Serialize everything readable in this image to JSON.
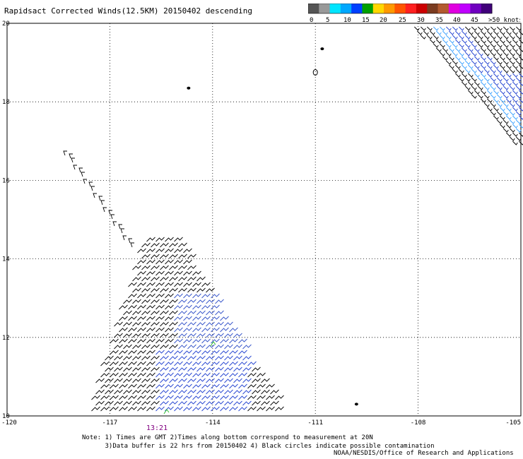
{
  "title": "Rapidsact Corrected Winds(12.5KM) 20150402 descending",
  "legend": {
    "labels": [
      "0",
      "5",
      "10",
      "15",
      "20",
      "25",
      "30",
      "35",
      "40",
      "45",
      ">50 knots"
    ],
    "colors": [
      "#555555",
      "#999999",
      "#00e5ff",
      "#00a8ff",
      "#0040ff",
      "#00a000",
      "#ffd700",
      "#ff9900",
      "#ff5500",
      "#ff2020",
      "#cc0000",
      "#7a3b20",
      "#b35a30",
      "#e000e0",
      "#c000ff",
      "#7000c0",
      "#40007a"
    ]
  },
  "axes": {
    "x_ticks": [
      "-120",
      "-117",
      "-114",
      "-111",
      "-108",
      "-105"
    ],
    "x_values": [
      -120,
      -117,
      -114,
      -111,
      -108,
      -105
    ],
    "y_ticks": [
      "20",
      "18",
      "16",
      "14",
      "12",
      "10"
    ],
    "y_values": [
      20,
      18,
      16,
      14,
      12,
      10
    ],
    "lon_range": [
      -120,
      -105
    ],
    "lat_range": [
      10,
      20
    ]
  },
  "time_label": "13:21",
  "notes": [
    "Note: 1) Times are GMT 2)Times along bottom correspond to measurement at 20N",
    "      3)Data buffer is 22 hrs from 20150402 4) Black circles indicate possible contamination"
  ],
  "credit": "NOAA/NESDIS/Office of Research and Applications",
  "islands": [
    {
      "name": "island-a",
      "lon": -110.8,
      "lat": 19.35
    },
    {
      "name": "island-b",
      "lon": -111.0,
      "lat": 18.75
    },
    {
      "name": "island-c",
      "lon": -114.7,
      "lat": 18.35
    },
    {
      "name": "island-d",
      "lon": -109.8,
      "lat": 10.3
    }
  ]
}
